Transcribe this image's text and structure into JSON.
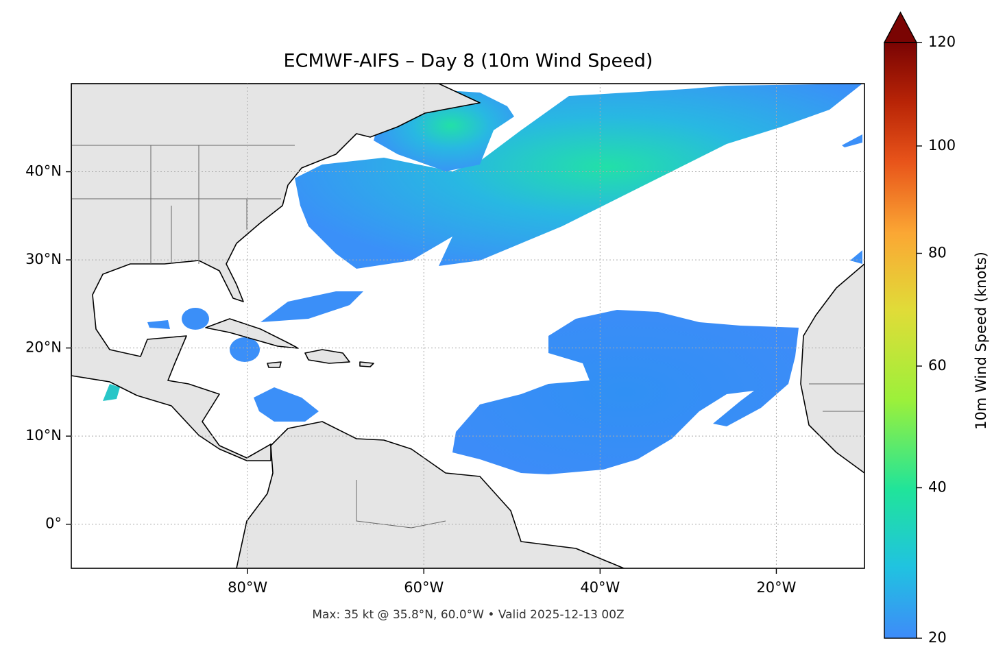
{
  "map": {
    "title": "ECMWF-AIFS – Day 8 (10m Wind Speed)",
    "footer": "Max: 35 kt @ 35.8°N, 60.0°W • Valid 2025-12-13 00Z",
    "xlim": [
      -100,
      -10
    ],
    "ylim": [
      -5,
      50
    ],
    "xticks": [
      {
        "value": -80,
        "label": "80°W"
      },
      {
        "value": -60,
        "label": "60°W"
      },
      {
        "value": -40,
        "label": "40°W"
      },
      {
        "value": -20,
        "label": "20°W"
      }
    ],
    "yticks": [
      {
        "value": 0,
        "label": "0°"
      },
      {
        "value": 10,
        "label": "10°N"
      },
      {
        "value": 20,
        "label": "20°N"
      },
      {
        "value": 30,
        "label": "30°N"
      },
      {
        "value": 40,
        "label": "40°N"
      }
    ],
    "grid": true
  },
  "colorbar": {
    "label": "10m Wind Speed (knots)",
    "lim": [
      20,
      120
    ],
    "ticks": [
      20,
      40,
      60,
      80,
      100,
      120
    ],
    "extend": "max"
  }
}
